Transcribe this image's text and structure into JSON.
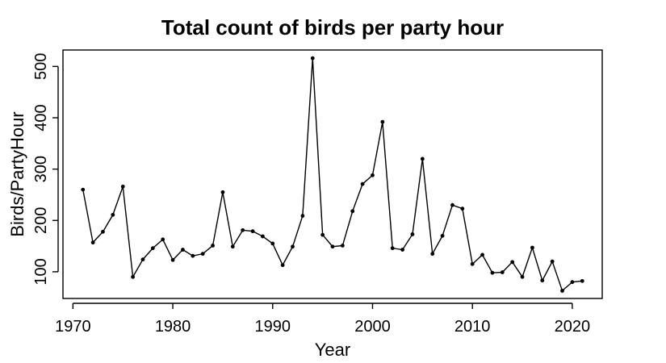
{
  "chart_data": {
    "type": "line",
    "title": "Total count of birds per party hour",
    "xlabel": "Year",
    "ylabel": "Birds/PartyHour",
    "xlim": [
      1969,
      2023
    ],
    "ylim": [
      48,
      532
    ],
    "xticks": [
      1970,
      1980,
      1990,
      2000,
      2010,
      2020
    ],
    "yticks": [
      100,
      200,
      300,
      400,
      500
    ],
    "grid": false,
    "markers": true,
    "colors": {
      "line": "#000000",
      "point": "#000000"
    },
    "series": [
      {
        "x": [
          1971,
          1972,
          1973,
          1974,
          1975,
          1976,
          1977,
          1978,
          1979,
          1980,
          1981,
          1982,
          1983,
          1984,
          1985,
          1986,
          1987,
          1988,
          1989,
          1990,
          1991,
          1992,
          1993,
          1994,
          1995,
          1996,
          1997,
          1998,
          1999,
          2000,
          2001,
          2002,
          2003,
          2004,
          2005,
          2006,
          2007,
          2008,
          2009,
          2010,
          2011,
          2012,
          2013,
          2014,
          2015,
          2016,
          2017,
          2018,
          2019,
          2020,
          2021
        ],
        "y": [
          260,
          157,
          178,
          211,
          266,
          90,
          124,
          146,
          163,
          123,
          143,
          131,
          135,
          151,
          255,
          149,
          181,
          179,
          169,
          155,
          113,
          149,
          209,
          516,
          172,
          149,
          151,
          218,
          271,
          288,
          392,
          146,
          143,
          173,
          320,
          135,
          170,
          230,
          223,
          115,
          133,
          98,
          99,
          119,
          90,
          147,
          83,
          120,
          63,
          80,
          82
        ]
      }
    ]
  }
}
